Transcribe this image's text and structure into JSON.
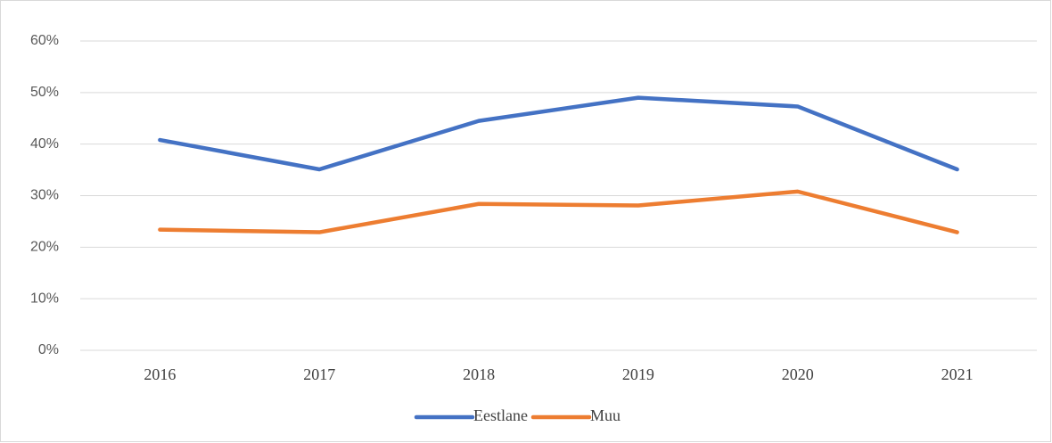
{
  "chart_data": {
    "type": "line",
    "categories": [
      "2016",
      "2017",
      "2018",
      "2019",
      "2020",
      "2021"
    ],
    "series": [
      {
        "name": "Eestlane",
        "color": "#4472c4",
        "values": [
          40.8,
          35.1,
          44.5,
          49.0,
          47.3,
          35.1
        ]
      },
      {
        "name": "Muu",
        "color": "#ed7d31",
        "values": [
          23.4,
          22.9,
          28.4,
          28.1,
          30.8,
          22.9
        ]
      }
    ],
    "ylim": [
      0,
      60
    ],
    "yticks": [
      {
        "value": 0,
        "label": "0%"
      },
      {
        "value": 10,
        "label": "10%"
      },
      {
        "value": 20,
        "label": "20%"
      },
      {
        "value": 30,
        "label": "30%"
      },
      {
        "value": 40,
        "label": "40%"
      },
      {
        "value": 50,
        "label": "50%"
      },
      {
        "value": 60,
        "label": "60%"
      }
    ],
    "grid": true,
    "legend": "bottom"
  }
}
